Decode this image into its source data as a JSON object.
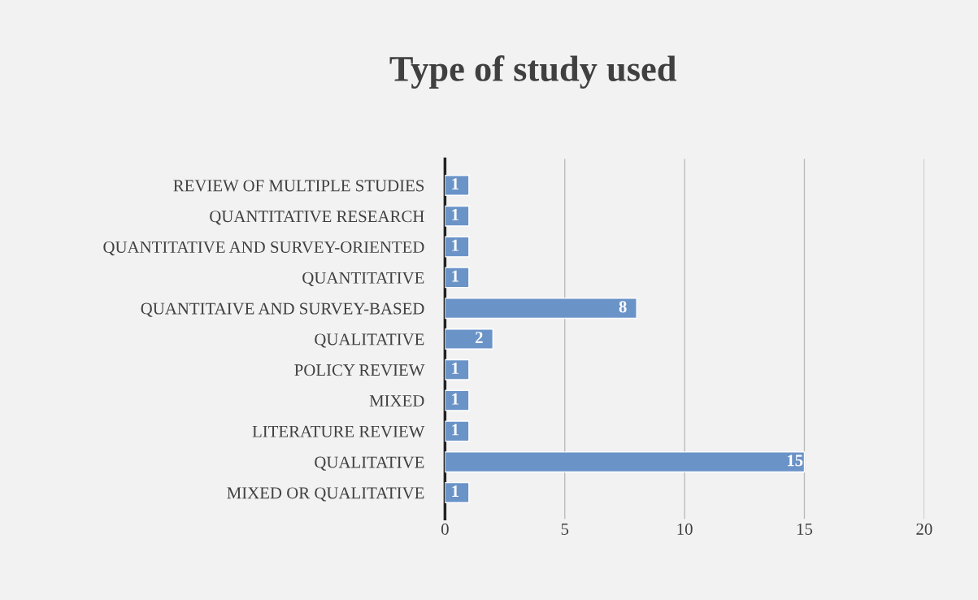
{
  "chart_data": {
    "type": "bar",
    "orientation": "horizontal",
    "title": "Type of study used",
    "categories": [
      "REVIEW OF MULTIPLE STUDIES",
      "QUANTITATIVE RESEARCH",
      "QUANTITATIVE AND SURVEY-ORIENTED",
      "QUANTITATIVE",
      "QUANTITAIVE AND SURVEY-BASED",
      "QUALITATIVE",
      "POLICY REVIEW",
      "MIXED",
      "LITERATURE REVIEW",
      "QUALITATIVE",
      "MIXED OR QUALITATIVE"
    ],
    "values": [
      1,
      1,
      1,
      1,
      8,
      2,
      1,
      1,
      1,
      15,
      1
    ],
    "color": "#6a93c8",
    "xlim": [
      0,
      20
    ],
    "xticks": [
      0,
      5,
      10,
      15,
      20
    ],
    "grid": "x",
    "data_labels": true
  }
}
